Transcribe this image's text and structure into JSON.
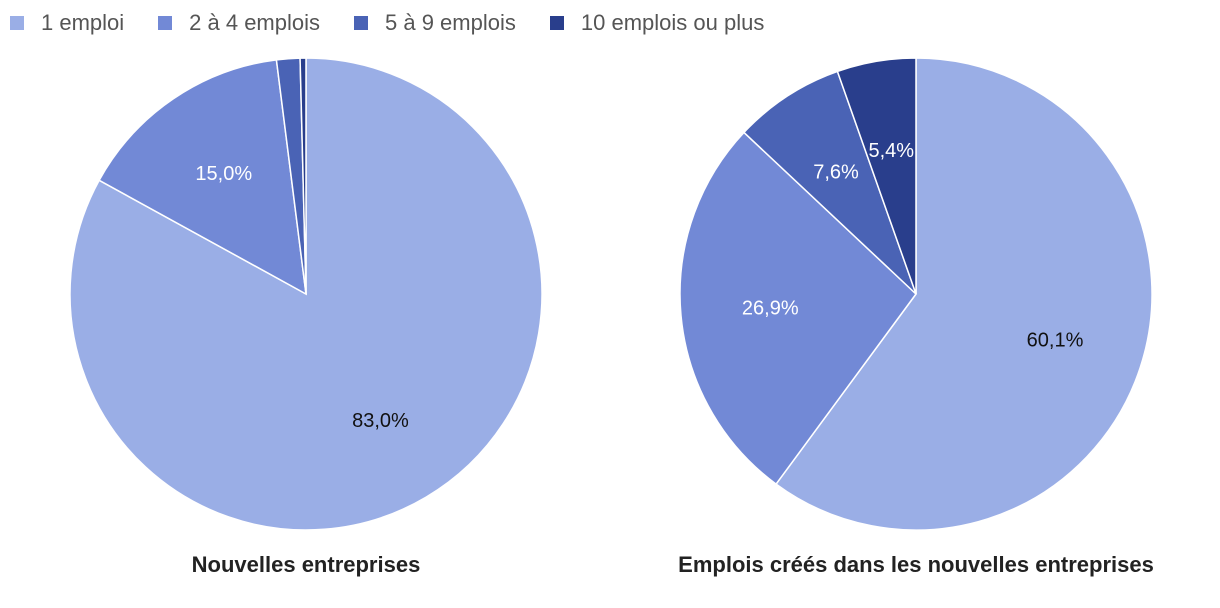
{
  "legend": {
    "items": [
      {
        "label": "1 emploi",
        "color": "#9aaee6"
      },
      {
        "label": "2 à 4 emplois",
        "color": "#7289d6"
      },
      {
        "label": "5 à 9 emplois",
        "color": "#4a63b5"
      },
      {
        "label": "10 emplois ou plus",
        "color": "#293e8c"
      }
    ]
  },
  "chart_data": [
    {
      "type": "pie",
      "title": "Nouvelles entreprises",
      "categories": [
        "1 emploi",
        "2 à 4 emplois",
        "5 à 9 emplois",
        "10 emplois ou plus"
      ],
      "values": [
        83.0,
        15.0,
        1.6,
        0.4
      ],
      "data_labels": [
        "83,0%",
        "15,0%",
        "",
        ""
      ],
      "label_colors": [
        "#111111",
        "#ffffff",
        "#ffffff",
        "#ffffff"
      ],
      "colors": [
        "#9aaee6",
        "#7289d6",
        "#4a63b5",
        "#293e8c"
      ]
    },
    {
      "type": "pie",
      "title": "Emplois créés dans les nouvelles entreprises",
      "categories": [
        "1 emploi",
        "2 à 4 emplois",
        "5 à 9 emplois",
        "10 emplois ou plus"
      ],
      "values": [
        60.1,
        26.9,
        7.6,
        5.4
      ],
      "data_labels": [
        "60,1%",
        "26,9%",
        "7,6%",
        "5,4%"
      ],
      "label_colors": [
        "#111111",
        "#ffffff",
        "#ffffff",
        "#ffffff"
      ],
      "colors": [
        "#9aaee6",
        "#7289d6",
        "#4a63b5",
        "#293e8c"
      ]
    }
  ]
}
